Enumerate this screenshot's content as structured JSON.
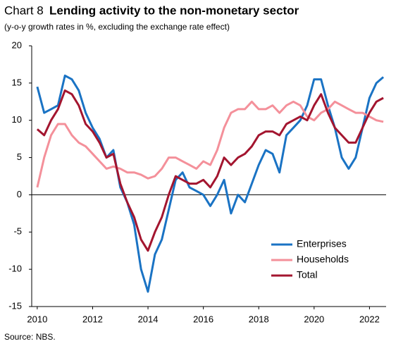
{
  "chart_data": {
    "type": "line",
    "title_label": "Chart 8",
    "title": "Lending activity to the non-monetary sector",
    "subtitle": "(y-o-y growth rates in %, excluding the exchange rate effect)",
    "source": "Source: NBS.",
    "x": [
      2010,
      2010.25,
      2010.5,
      2010.75,
      2011,
      2011.25,
      2011.5,
      2011.75,
      2012,
      2012.25,
      2012.5,
      2012.75,
      2013,
      2013.25,
      2013.5,
      2013.75,
      2014,
      2014.25,
      2014.5,
      2014.75,
      2015,
      2015.25,
      2015.5,
      2015.75,
      2016,
      2016.25,
      2016.5,
      2016.75,
      2017,
      2017.25,
      2017.5,
      2017.75,
      2018,
      2018.25,
      2018.5,
      2018.75,
      2019,
      2019.25,
      2019.5,
      2019.75,
      2020,
      2020.25,
      2020.5,
      2020.75,
      2021,
      2021.25,
      2021.5,
      2021.75,
      2022,
      2022.25,
      2022.5
    ],
    "series": [
      {
        "name": "Enterprises",
        "color": "#1a73c4",
        "values": [
          14.5,
          11,
          11.5,
          12,
          16,
          15.5,
          14,
          11,
          9,
          7.5,
          5,
          6,
          1,
          -1,
          -4,
          -10,
          -13,
          -8,
          -6,
          -2,
          2,
          3,
          1,
          0.5,
          0,
          -1.5,
          0,
          2,
          -2.5,
          0,
          -1,
          1.5,
          4,
          6,
          5.5,
          3,
          8,
          9,
          10,
          12,
          15.5,
          15.5,
          12,
          9,
          5,
          3.5,
          5,
          9,
          13,
          15,
          15.8
        ]
      },
      {
        "name": "Households",
        "color": "#f4909a",
        "values": [
          1,
          5,
          8,
          9.5,
          9.5,
          8,
          7,
          6.5,
          5.5,
          4.5,
          3.5,
          3.8,
          3.5,
          3,
          3,
          2.7,
          2.2,
          2.5,
          3.5,
          5,
          5,
          4.5,
          4,
          3.5,
          4.5,
          4,
          6,
          9,
          11,
          11.5,
          11.5,
          12.5,
          11.5,
          11.5,
          12,
          11,
          12,
          12.5,
          12,
          10.5,
          10,
          11,
          11.5,
          12.5,
          12,
          11.5,
          11,
          11,
          10.5,
          10,
          9.8
        ]
      },
      {
        "name": "Total",
        "color": "#a3152f",
        "values": [
          8.8,
          8,
          10,
          11.5,
          14,
          13.5,
          12,
          9.5,
          8.5,
          7,
          5,
          5.5,
          1.5,
          -1,
          -3,
          -6,
          -7.5,
          -5,
          -3,
          0,
          2.5,
          2,
          1.5,
          1.5,
          2,
          1,
          2.5,
          5,
          4,
          5,
          5.5,
          6.5,
          8,
          8.5,
          8.5,
          8,
          9.5,
          10,
          10.5,
          10,
          12,
          13.5,
          11,
          9,
          8,
          7,
          7,
          9,
          11,
          12.5,
          13
        ]
      }
    ],
    "xlim": [
      2009.8,
      2022.6
    ],
    "xticks": [
      2010,
      2012,
      2014,
      2016,
      2018,
      2020,
      2022
    ],
    "ylim": [
      -15,
      20
    ],
    "yticks": [
      -15,
      -10,
      -5,
      0,
      5,
      10,
      15,
      20
    ],
    "grid": false,
    "legend": "lower right"
  }
}
